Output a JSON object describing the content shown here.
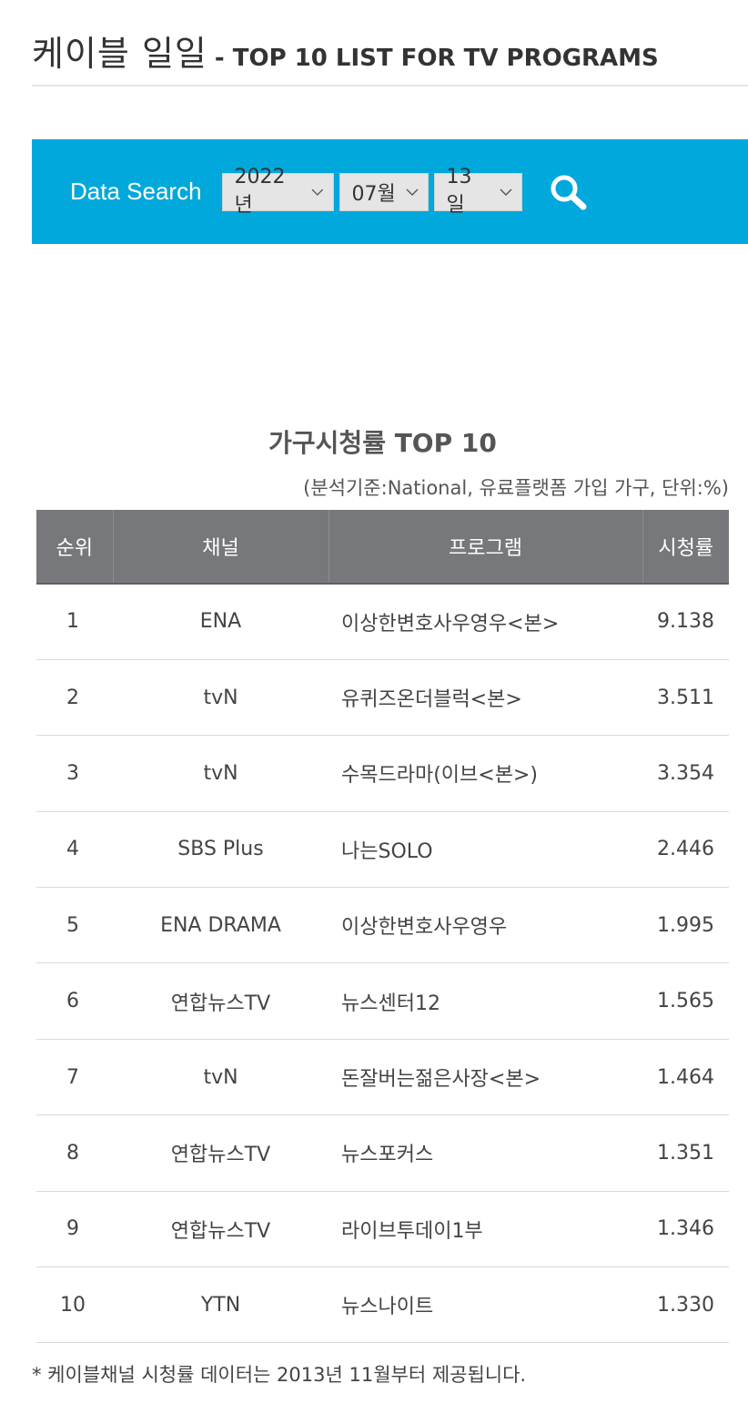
{
  "header": {
    "title_ko": "케이블 일일",
    "title_en": "- TOP 10 LIST FOR TV PROGRAMS"
  },
  "search": {
    "label": "Data Search",
    "year": "2022년",
    "month": "07월",
    "day": "13일",
    "button_icon": "search-icon"
  },
  "table": {
    "title": "가구시청률 TOP 10",
    "note": "(분석기준:National, 유료플랫폼 가입 가구, 단위:%)",
    "columns": [
      "순위",
      "채널",
      "프로그램",
      "시청률"
    ],
    "rows": [
      {
        "rank": "1",
        "channel": "ENA",
        "program": "이상한변호사우영우<본>",
        "rating": "9.138"
      },
      {
        "rank": "2",
        "channel": "tvN",
        "program": "유퀴즈온더블럭<본>",
        "rating": "3.511"
      },
      {
        "rank": "3",
        "channel": "tvN",
        "program": "수목드라마(이브<본>)",
        "rating": "3.354"
      },
      {
        "rank": "4",
        "channel": "SBS Plus",
        "program": "나는SOLO",
        "rating": "2.446"
      },
      {
        "rank": "5",
        "channel": "ENA DRAMA",
        "program": "이상한변호사우영우",
        "rating": "1.995"
      },
      {
        "rank": "6",
        "channel": "연합뉴스TV",
        "program": "뉴스센터12",
        "rating": "1.565"
      },
      {
        "rank": "7",
        "channel": "tvN",
        "program": "돈잘버는젊은사장<본>",
        "rating": "1.464"
      },
      {
        "rank": "8",
        "channel": "연합뉴스TV",
        "program": "뉴스포커스",
        "rating": "1.351"
      },
      {
        "rank": "9",
        "channel": "연합뉴스TV",
        "program": "라이브투데이1부",
        "rating": "1.346"
      },
      {
        "rank": "10",
        "channel": "YTN",
        "program": "뉴스나이트",
        "rating": "1.330"
      }
    ]
  },
  "footnote": "* 케이블채널 시청률 데이터는 2013년 11월부터 제공됩니다.",
  "colors": {
    "accent": "#00a8dc",
    "table_header": "#77787b",
    "rating_text": "#1d9bc9"
  }
}
